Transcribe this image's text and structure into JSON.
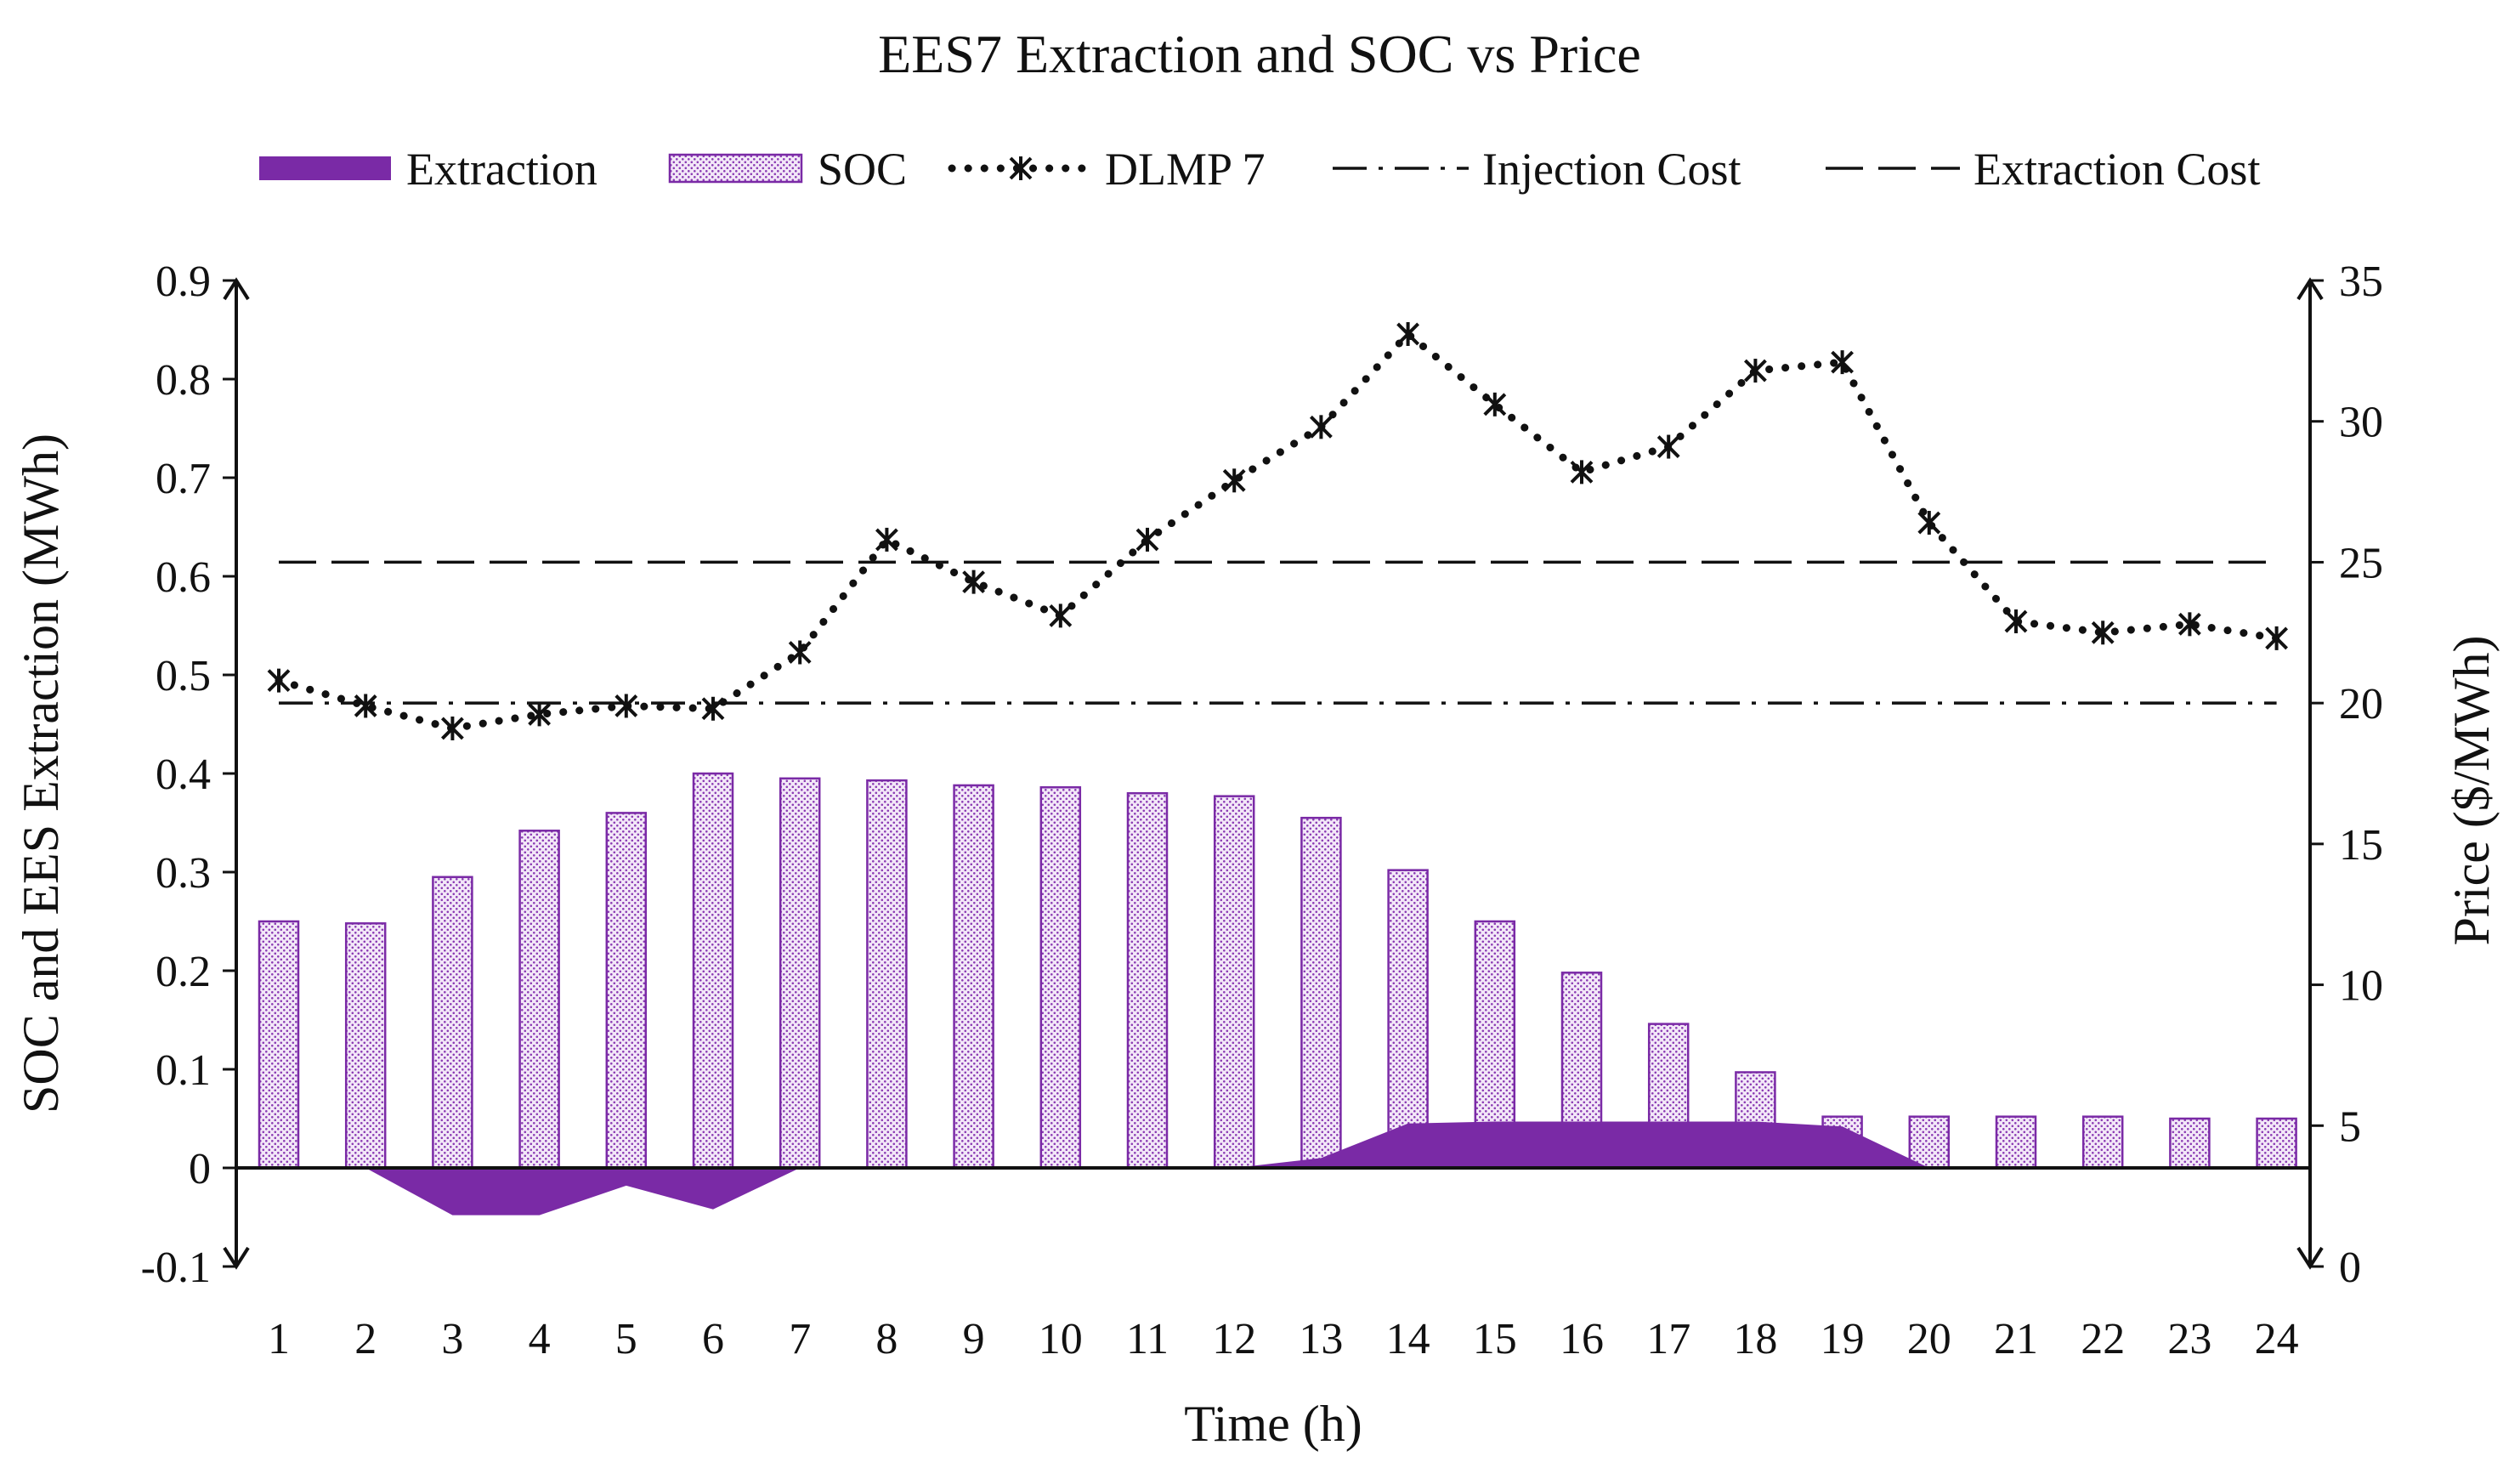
{
  "chart_data": {
    "type": "bar",
    "title": "EES7 Extraction and SOC vs Price",
    "xlabel": "Time (h)",
    "ylabel": "SOC and EES Extraction (MWh)",
    "y2label": "Price ($/MWh)",
    "categories": [
      "1",
      "2",
      "3",
      "4",
      "5",
      "6",
      "7",
      "8",
      "9",
      "10",
      "11",
      "12",
      "13",
      "14",
      "15",
      "16",
      "17",
      "18",
      "19",
      "20",
      "21",
      "22",
      "23",
      "24"
    ],
    "ylim": [
      -0.1,
      0.9
    ],
    "y2lim": [
      0,
      35
    ],
    "yticks": [
      "-0.1",
      "0",
      "0.1",
      "0.2",
      "0.3",
      "0.4",
      "0.5",
      "0.6",
      "0.7",
      "0.8",
      "0.9"
    ],
    "y2ticks": [
      "0",
      "5",
      "10",
      "15",
      "20",
      "25",
      "30",
      "35"
    ],
    "grid": false,
    "legend_position": "top",
    "series": [
      {
        "name": "Extraction",
        "type": "area",
        "axis": "left",
        "color": "#7a2aa6",
        "values": [
          0,
          0,
          -0.048,
          -0.048,
          -0.018,
          -0.042,
          0,
          0,
          0,
          0,
          0,
          0,
          0.01,
          0.045,
          0.047,
          0.047,
          0.047,
          0.047,
          0.042,
          0,
          0,
          0,
          0,
          0
        ]
      },
      {
        "name": "SOC",
        "type": "bar",
        "axis": "left",
        "color": "#7a2aa6",
        "values": [
          0.25,
          0.248,
          0.295,
          0.342,
          0.36,
          0.4,
          0.395,
          0.393,
          0.388,
          0.386,
          0.38,
          0.377,
          0.355,
          0.302,
          0.25,
          0.198,
          0.146,
          0.097,
          0.052,
          0.052,
          0.052,
          0.052,
          0.05,
          0.05
        ]
      },
      {
        "name": "DLMP 7",
        "type": "line",
        "axis": "right",
        "color": "#111111",
        "values": [
          20.8,
          19.9,
          19.1,
          19.6,
          19.9,
          19.8,
          21.8,
          25.8,
          24.3,
          23.1,
          25.8,
          27.9,
          29.8,
          33.1,
          30.6,
          28.2,
          29.1,
          31.8,
          32.1,
          26.4,
          22.9,
          22.5,
          22.8,
          22.3
        ]
      },
      {
        "name": "Injection Cost",
        "type": "line",
        "axis": "right",
        "color": "#111111",
        "values": [
          20,
          20,
          20,
          20,
          20,
          20,
          20,
          20,
          20,
          20,
          20,
          20,
          20,
          20,
          20,
          20,
          20,
          20,
          20,
          20,
          20,
          20,
          20,
          20
        ]
      },
      {
        "name": "Extraction Cost",
        "type": "line",
        "axis": "right",
        "color": "#111111",
        "values": [
          25,
          25,
          25,
          25,
          25,
          25,
          25,
          25,
          25,
          25,
          25,
          25,
          25,
          25,
          25,
          25,
          25,
          25,
          25,
          25,
          25,
          25,
          25,
          25
        ]
      }
    ]
  }
}
